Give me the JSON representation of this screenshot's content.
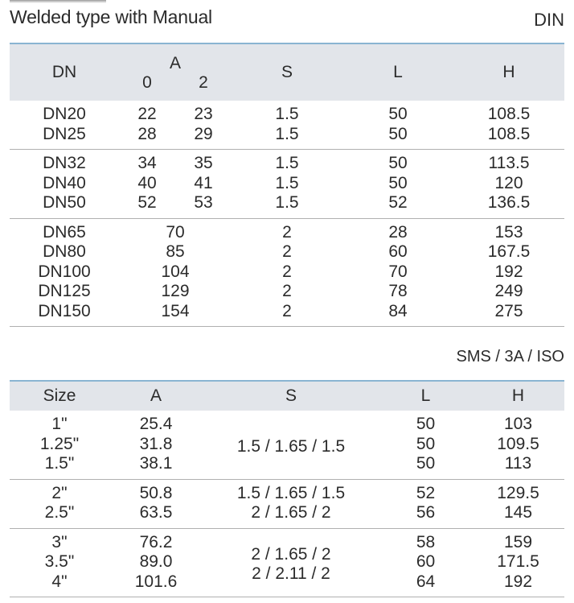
{
  "heading": {
    "title": "Welded type with Manual"
  },
  "din": {
    "standard_label": "DIN",
    "headers": {
      "dn": "DN",
      "a": "A",
      "a_sub": [
        "0",
        "2"
      ],
      "s": "S",
      "l": "L",
      "h": "H"
    },
    "rows": [
      {
        "dn": "DN20",
        "a0": "22",
        "a2": "23",
        "s": "1.5",
        "l": "50",
        "h": "108.5"
      },
      {
        "dn": "DN25",
        "a0": "28",
        "a2": "29",
        "s": "1.5",
        "l": "50",
        "h": "108.5"
      },
      {
        "dn": "DN32",
        "a0": "34",
        "a2": "35",
        "s": "1.5",
        "l": "50",
        "h": "113.5"
      },
      {
        "dn": "DN40",
        "a0": "40",
        "a2": "41",
        "s": "1.5",
        "l": "50",
        "h": "120"
      },
      {
        "dn": "DN50",
        "a0": "52",
        "a2": "53",
        "s": "1.5",
        "l": "52",
        "h": "136.5"
      },
      {
        "dn": "DN65",
        "a": "70",
        "s": "2",
        "l": "28",
        "h": "153"
      },
      {
        "dn": "DN80",
        "a": "85",
        "s": "2",
        "l": "60",
        "h": "167.5"
      },
      {
        "dn": "DN100",
        "a": "104",
        "s": "2",
        "l": "70",
        "h": "192"
      },
      {
        "dn": "DN125",
        "a": "129",
        "s": "2",
        "l": "78",
        "h": "249"
      },
      {
        "dn": "DN150",
        "a": "154",
        "s": "2",
        "l": "84",
        "h": "275"
      }
    ]
  },
  "sms": {
    "standard_label": "SMS / 3A / ISO",
    "headers": {
      "size": "Size",
      "a": "A",
      "s": "S",
      "l": "L",
      "h": "H"
    },
    "rows": [
      {
        "size": "1\"",
        "a": "25.4",
        "l": "50",
        "h": "103"
      },
      {
        "size": "1.25\"",
        "a": "31.8",
        "l": "50",
        "h": "109.5"
      },
      {
        "size": "1.5\"",
        "a": "38.1",
        "l": "50",
        "h": "113"
      },
      {
        "size": "2\"",
        "a": "50.8",
        "s": "1.5 / 1.65 / 1.5",
        "l": "52",
        "h": "129.5"
      },
      {
        "size": "2.5\"",
        "a": "63.5",
        "s": "2 / 1.65 / 2",
        "l": "56",
        "h": "145"
      },
      {
        "size": "3\"",
        "a": "76.2",
        "l": "58",
        "h": "159"
      },
      {
        "size": "3.5\"",
        "a": "89.0",
        "l": "60",
        "h": "171.5"
      },
      {
        "size": "4\"",
        "a": "101.6",
        "l": "64",
        "h": "192"
      }
    ],
    "group1_s": "1.5 / 1.65 / 1.5",
    "group3_s": [
      "2 / 1.65 / 2",
      "2 / 2.11 / 2"
    ]
  }
}
